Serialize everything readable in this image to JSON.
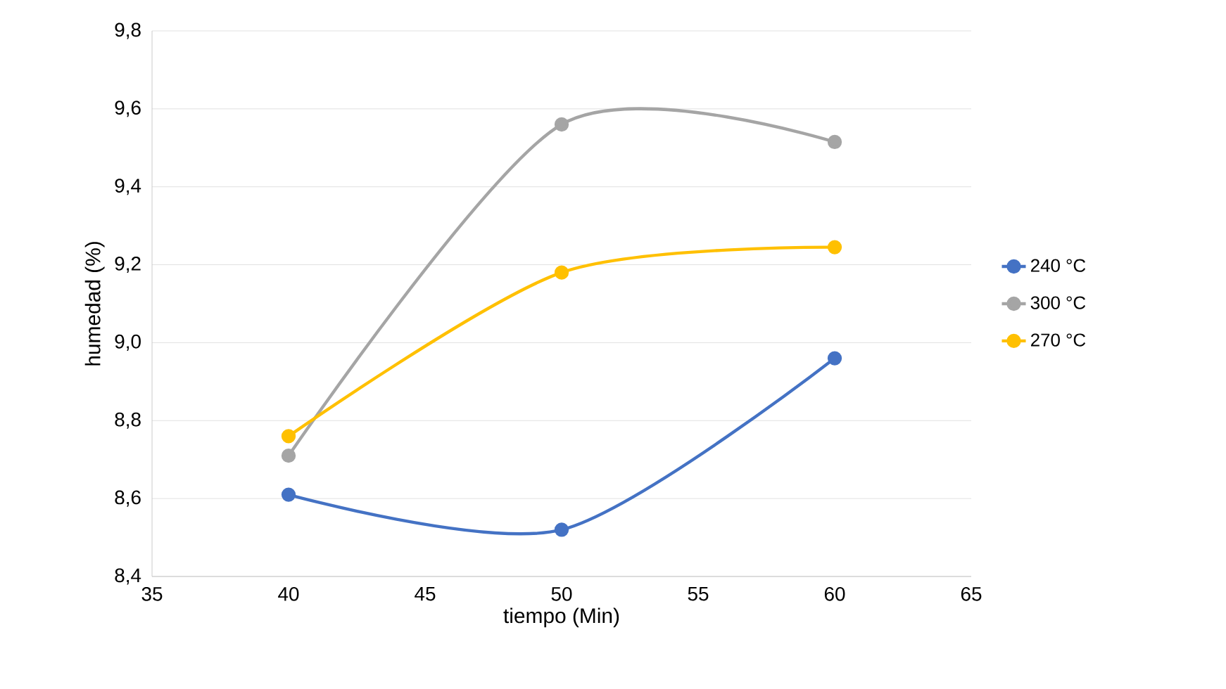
{
  "chart_data": {
    "type": "line",
    "xlabel": "tiempo (Min)",
    "ylabel": "humedad (%)",
    "x": [
      40,
      50,
      60
    ],
    "series": [
      {
        "name": "240 °C",
        "color": "#4472c4",
        "values": [
          8.61,
          8.52,
          8.96
        ]
      },
      {
        "name": "300 °C",
        "color": "#a5a5a5",
        "values": [
          8.71,
          9.56,
          9.515
        ]
      },
      {
        "name": "270 °C",
        "color": "#ffc000",
        "values": [
          8.76,
          9.18,
          9.245
        ]
      }
    ],
    "xlim": [
      35,
      65
    ],
    "xticks": [
      35,
      40,
      45,
      50,
      55,
      60,
      65
    ],
    "ylim": [
      8.4,
      9.8
    ],
    "yticks": [
      {
        "value": 8.4,
        "label": "8,4"
      },
      {
        "value": 8.6,
        "label": "8,6"
      },
      {
        "value": 8.8,
        "label": "8,8"
      },
      {
        "value": 9.0,
        "label": "9,0"
      },
      {
        "value": 9.2,
        "label": "9,2"
      },
      {
        "value": 9.4,
        "label": "9,4"
      },
      {
        "value": 9.6,
        "label": "9,6"
      },
      {
        "value": 9.8,
        "label": "9,8"
      }
    ],
    "grid": "y",
    "legend": "right",
    "marker": "circle",
    "line_style": "solid"
  }
}
